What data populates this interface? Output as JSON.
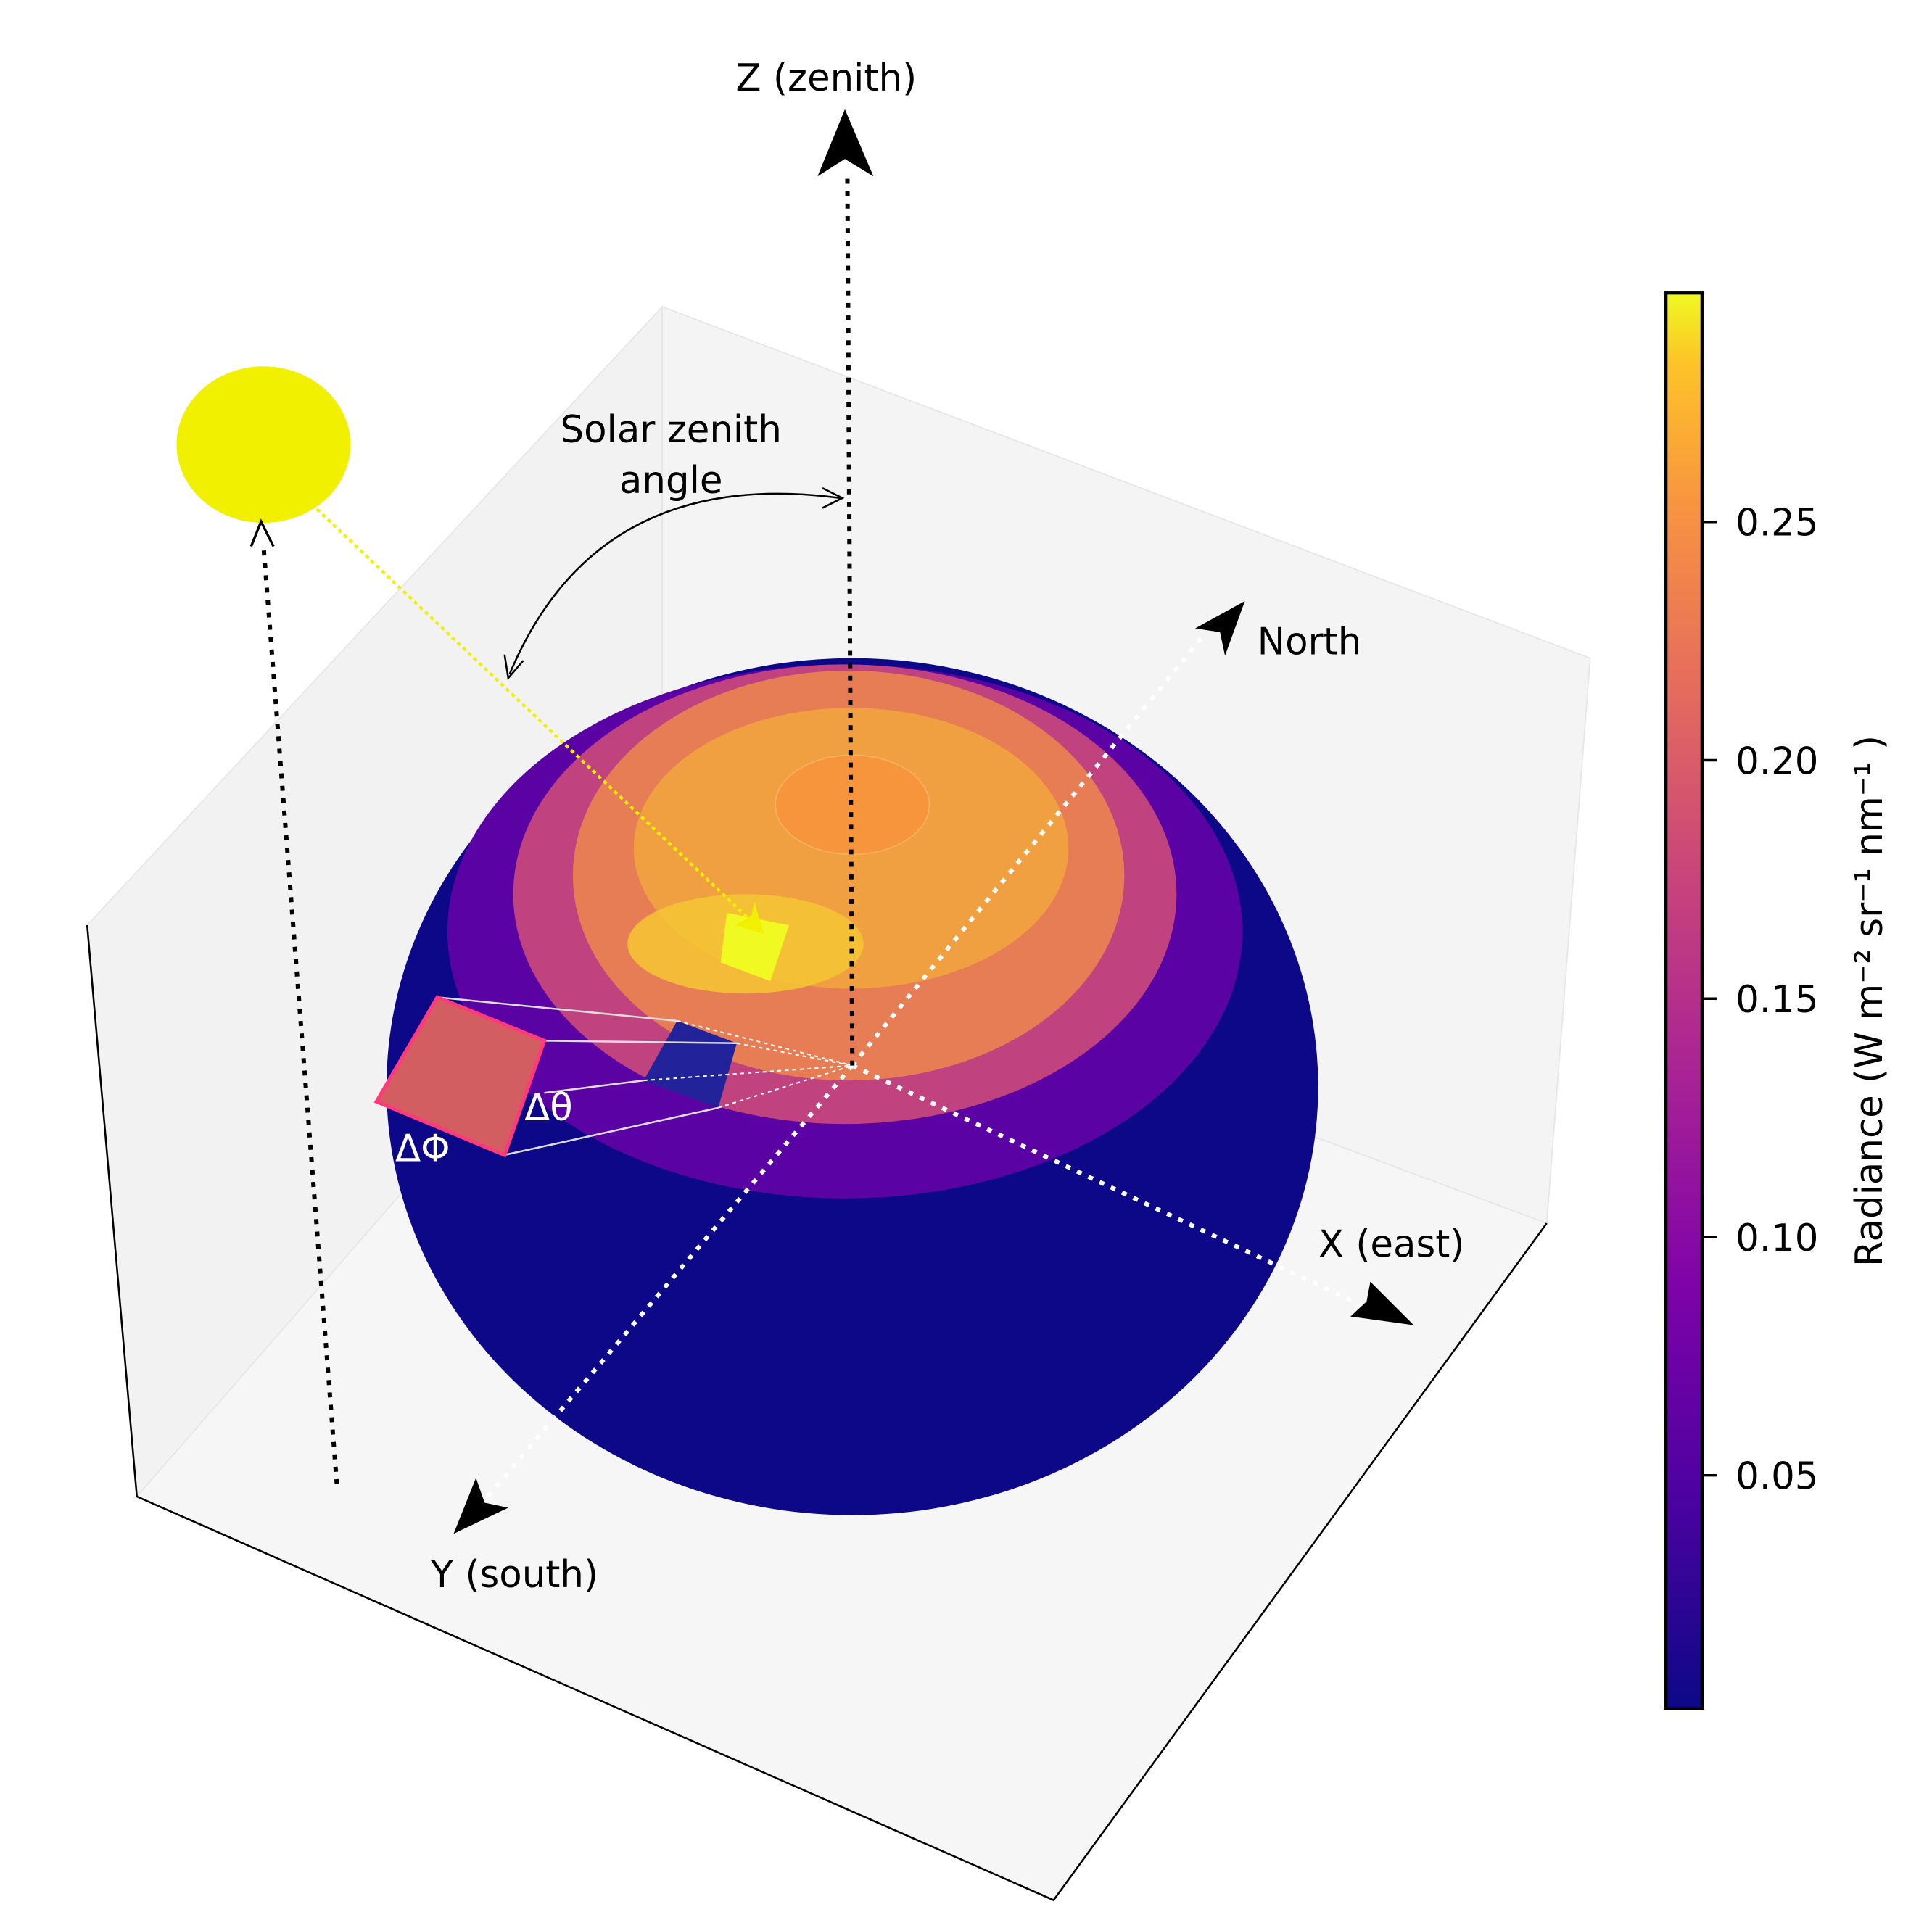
{
  "labels": {
    "z_axis": "Z (zenith)",
    "north": "North",
    "x_axis": "X (east)",
    "y_axis": "Y (south)",
    "solar_zenith_angle": [
      "Solar zenith",
      "angle"
    ],
    "delta_theta": "Δθ",
    "delta_phi": "ΔΦ"
  },
  "colorbar": {
    "label": "Radiance (W m⁻² sr⁻¹ nm⁻¹ )",
    "lim": [
      0.001,
      0.298
    ],
    "ticks": [
      0.05,
      {
        "value": 0.1,
        "label": "0.10"
      },
      0.15,
      {
        "value": 0.2,
        "label": "0.20"
      },
      0.25
    ]
  }
}
